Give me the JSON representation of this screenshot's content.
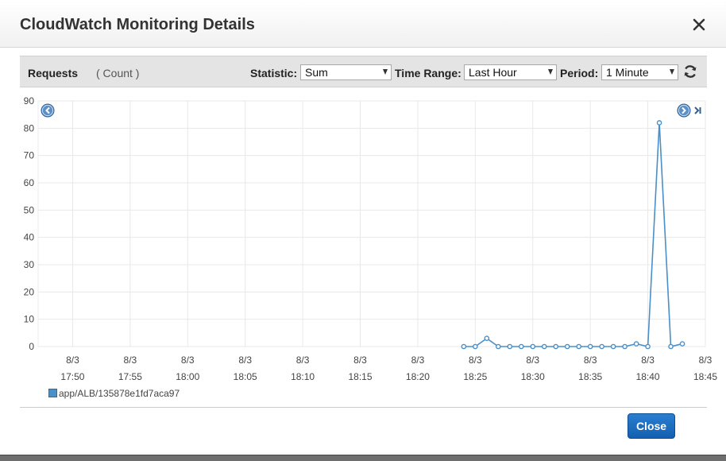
{
  "dialog": {
    "title": "CloudWatch Monitoring Details",
    "close_button_label": "Close"
  },
  "toolbar": {
    "metric_name": "Requests",
    "metric_unit": "( Count )",
    "statistic_label": "Statistic:",
    "statistic_value": "Sum",
    "time_range_label": "Time Range:",
    "time_range_value": "Last Hour",
    "period_label": "Period:",
    "period_value": "1 Minute"
  },
  "icons": {
    "close": "close-icon",
    "refresh": "refresh-icon",
    "prev": "chevron-left-icon",
    "next": "chevron-right-icon",
    "end": "skip-to-end-icon"
  },
  "colors": {
    "series": "#4a8fc8",
    "close_button": "#1a6ec4"
  },
  "chart_data": {
    "type": "line",
    "ylim": [
      0,
      90
    ],
    "y_ticks": [
      0,
      10,
      20,
      30,
      40,
      50,
      60,
      70,
      80,
      90
    ],
    "x_ticks": [
      {
        "date": "8/3",
        "time": "17:50"
      },
      {
        "date": "8/3",
        "time": "17:55"
      },
      {
        "date": "8/3",
        "time": "18:00"
      },
      {
        "date": "8/3",
        "time": "18:05"
      },
      {
        "date": "8/3",
        "time": "18:10"
      },
      {
        "date": "8/3",
        "time": "18:15"
      },
      {
        "date": "8/3",
        "time": "18:20"
      },
      {
        "date": "8/3",
        "time": "18:25"
      },
      {
        "date": "8/3",
        "time": "18:30"
      },
      {
        "date": "8/3",
        "time": "18:35"
      },
      {
        "date": "8/3",
        "time": "18:40"
      },
      {
        "date": "8/3",
        "time": "18:45"
      }
    ],
    "x_domain": [
      "17:47",
      "18:45"
    ],
    "grid": true,
    "legend": "bottom-left",
    "series": [
      {
        "name": "app/ALB/135878e1fd7aca97",
        "points": [
          [
            "18:24",
            0
          ],
          [
            "18:25",
            0
          ],
          [
            "18:26",
            3
          ],
          [
            "18:27",
            0
          ],
          [
            "18:28",
            0
          ],
          [
            "18:29",
            0
          ],
          [
            "18:30",
            0
          ],
          [
            "18:31",
            0
          ],
          [
            "18:32",
            0
          ],
          [
            "18:33",
            0
          ],
          [
            "18:34",
            0
          ],
          [
            "18:35",
            0
          ],
          [
            "18:36",
            0
          ],
          [
            "18:37",
            0
          ],
          [
            "18:38",
            0
          ],
          [
            "18:39",
            1
          ],
          [
            "18:40",
            0
          ],
          [
            "18:41",
            82
          ],
          [
            "18:42",
            0
          ],
          [
            "18:43",
            1
          ]
        ]
      }
    ]
  }
}
